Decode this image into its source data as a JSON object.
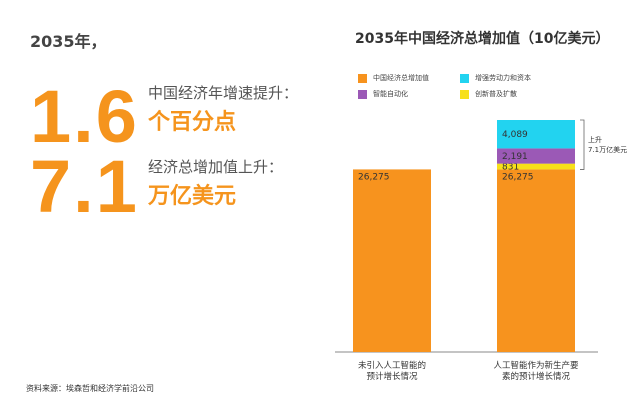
{
  "left": {
    "intro": "2035年，",
    "stats": [
      {
        "number": "1.6",
        "label": "中国经济年增速提升：",
        "emph": "个百分点"
      },
      {
        "number": "7.1",
        "label": "经济总增加值上升：",
        "emph": "万亿美元"
      }
    ],
    "source": "资料来源：埃森哲和经济学前沿公司"
  },
  "colors": {
    "orange": "#f7931e",
    "cyan": "#22d3f0",
    "purple": "#9b59b6",
    "yellow": "#f7e01a",
    "text_orange": "#f5941d"
  },
  "chart_data": {
    "type": "bar",
    "title": "2035年中国经济总增加值（10亿美元）",
    "categories": [
      "未引入人工智能的\n预计增长情况",
      "人工智能作为新生产要\n素的预计增长情况"
    ],
    "series": [
      {
        "name": "中国经济总增加值",
        "color": "#f7931e",
        "values": [
          26275,
          26275
        ],
        "labels": [
          "26,275",
          "26,275"
        ]
      },
      {
        "name": "创新普及扩散",
        "color": "#f7e01a",
        "values": [
          0,
          831
        ],
        "labels": [
          "",
          "831"
        ]
      },
      {
        "name": "智能自动化",
        "color": "#9b59b6",
        "values": [
          0,
          2191
        ],
        "labels": [
          "",
          "2,191"
        ]
      },
      {
        "name": "增强劳动力和资本",
        "color": "#22d3f0",
        "values": [
          0,
          4089
        ],
        "labels": [
          "",
          "4,089"
        ]
      }
    ],
    "legend": [
      {
        "name": "中国经济总增加值",
        "color": "#f7931e"
      },
      {
        "name": "增强劳动力和资本",
        "color": "#22d3f0"
      },
      {
        "name": "智能自动化",
        "color": "#9b59b6"
      },
      {
        "name": "创新普及扩散",
        "color": "#f7e01a"
      }
    ],
    "annotation": {
      "line1": "上升",
      "line2": "7.1万亿美元"
    },
    "ylim": [
      0,
      33386
    ],
    "grid": false,
    "legend_placement": "top"
  }
}
